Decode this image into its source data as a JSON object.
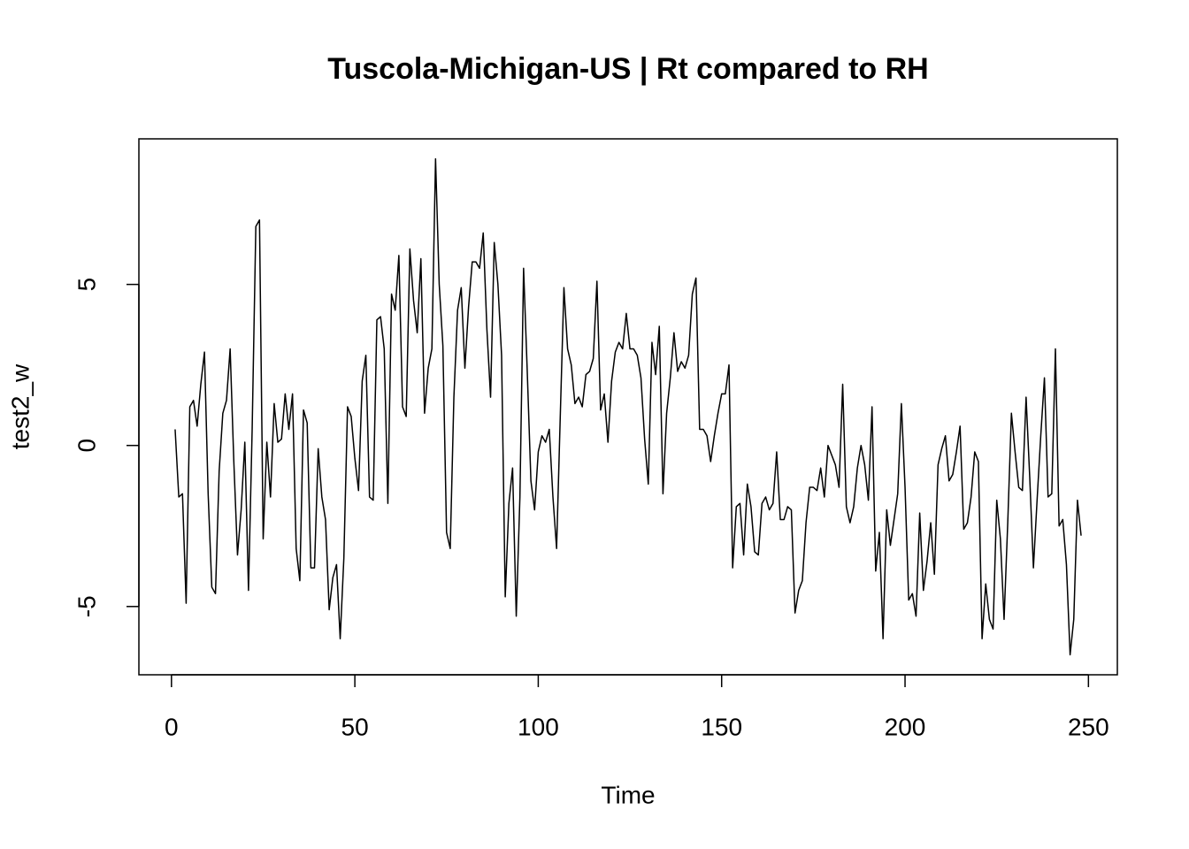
{
  "chart_data": {
    "type": "line",
    "title": "Tuscola-Michigan-US | Rt compared to RH",
    "xlabel": "Time",
    "ylabel": "test2_w",
    "color": "#000000",
    "x": [
      1,
      2,
      3,
      4,
      5,
      6,
      7,
      8,
      9,
      10,
      11,
      12,
      13,
      14,
      15,
      16,
      17,
      18,
      19,
      20,
      21,
      22,
      23,
      24,
      25,
      26,
      27,
      28,
      29,
      30,
      31,
      32,
      33,
      34,
      35,
      36,
      37,
      38,
      39,
      40,
      41,
      42,
      43,
      44,
      45,
      46,
      47,
      48,
      49,
      50,
      51,
      52,
      53,
      54,
      55,
      56,
      57,
      58,
      59,
      60,
      61,
      62,
      63,
      64,
      65,
      66,
      67,
      68,
      69,
      70,
      71,
      72,
      73,
      74,
      75,
      76,
      77,
      78,
      79,
      80,
      81,
      82,
      83,
      84,
      85,
      86,
      87,
      88,
      89,
      90,
      91,
      92,
      93,
      94,
      95,
      96,
      97,
      98,
      99,
      100,
      101,
      102,
      103,
      104,
      105,
      106,
      107,
      108,
      109,
      110,
      111,
      112,
      113,
      114,
      115,
      116,
      117,
      118,
      119,
      120,
      121,
      122,
      123,
      124,
      125,
      126,
      127,
      128,
      129,
      130,
      131,
      132,
      133,
      134,
      135,
      136,
      137,
      138,
      139,
      140,
      141,
      142,
      143,
      144,
      145,
      146,
      147,
      148,
      149,
      150,
      151,
      152,
      153,
      154,
      155,
      156,
      157,
      158,
      159,
      160,
      161,
      162,
      163,
      164,
      165,
      166,
      167,
      168,
      169,
      170,
      171,
      172,
      173,
      174,
      175,
      176,
      177,
      178,
      179,
      180,
      181,
      182,
      183,
      184,
      185,
      186,
      187,
      188,
      189,
      190,
      191,
      192,
      193,
      194,
      195,
      196,
      197,
      198,
      199,
      200,
      201,
      202,
      203,
      204,
      205,
      206,
      207,
      208,
      209,
      210,
      211,
      212,
      213,
      214,
      215,
      216,
      217,
      218,
      219,
      220,
      221,
      222,
      223,
      224,
      225,
      226,
      227,
      228,
      229,
      230,
      231,
      232,
      233,
      234,
      235,
      236,
      237,
      238,
      239,
      240,
      241,
      242,
      243,
      244,
      245,
      246,
      247,
      248
    ],
    "values": [
      0.5,
      -1.6,
      -1.5,
      -4.9,
      1.2,
      1.4,
      0.6,
      1.9,
      2.9,
      -1.5,
      -4.4,
      -4.6,
      -0.8,
      1.0,
      1.4,
      3.0,
      -0.5,
      -3.4,
      -2.0,
      0.1,
      -4.5,
      0.5,
      6.8,
      7.0,
      -2.9,
      0.1,
      -1.6,
      1.3,
      0.1,
      0.2,
      1.6,
      0.5,
      1.6,
      -3.2,
      -4.2,
      1.1,
      0.7,
      -3.8,
      -3.8,
      -0.1,
      -1.6,
      -2.3,
      -5.1,
      -4.1,
      -3.7,
      -6.0,
      -3.5,
      1.2,
      0.9,
      -0.4,
      -1.4,
      2.0,
      2.8,
      -1.6,
      -1.7,
      3.9,
      4.0,
      3.0,
      -1.8,
      4.7,
      4.2,
      5.9,
      1.2,
      0.9,
      6.1,
      4.5,
      3.5,
      5.8,
      1.0,
      2.4,
      3.0,
      8.9,
      5.0,
      3.1,
      -2.7,
      -3.2,
      1.5,
      4.2,
      4.9,
      2.4,
      4.3,
      5.7,
      5.7,
      5.5,
      6.6,
      3.6,
      1.5,
      6.3,
      5.0,
      2.8,
      -4.7,
      -1.8,
      -0.7,
      -5.3,
      -1.6,
      5.5,
      2.3,
      -1.1,
      -2.0,
      -0.2,
      0.3,
      0.1,
      0.5,
      -1.6,
      -3.2,
      0.9,
      4.9,
      3.0,
      2.5,
      1.3,
      1.5,
      1.2,
      2.2,
      2.3,
      2.7,
      5.1,
      1.1,
      1.6,
      0.1,
      2.0,
      2.9,
      3.2,
      3.0,
      4.1,
      3.0,
      3.0,
      2.8,
      2.1,
      0.2,
      -1.2,
      3.2,
      2.2,
      3.7,
      -1.5,
      1.0,
      2.1,
      3.5,
      2.3,
      2.6,
      2.4,
      2.8,
      4.7,
      5.2,
      0.5,
      0.5,
      0.3,
      -0.5,
      0.3,
      1.0,
      1.6,
      1.6,
      2.5,
      -3.8,
      -1.9,
      -1.8,
      -3.4,
      -1.2,
      -1.9,
      -3.3,
      -3.4,
      -1.8,
      -1.6,
      -2.0,
      -1.8,
      -0.2,
      -2.3,
      -2.3,
      -1.9,
      -2.0,
      -5.2,
      -4.5,
      -4.2,
      -2.4,
      -1.3,
      -1.3,
      -1.4,
      -0.7,
      -1.6,
      0.0,
      -0.3,
      -0.6,
      -1.3,
      1.9,
      -1.9,
      -2.4,
      -1.9,
      -0.7,
      0.0,
      -0.6,
      -1.7,
      1.2,
      -3.9,
      -2.7,
      -6.0,
      -2.0,
      -3.1,
      -2.3,
      -1.5,
      1.3,
      -1.3,
      -4.8,
      -4.6,
      -5.3,
      -2.1,
      -4.5,
      -3.6,
      -2.4,
      -4.0,
      -0.6,
      -0.1,
      0.3,
      -1.1,
      -0.9,
      -0.2,
      0.6,
      -2.6,
      -2.4,
      -1.6,
      -0.2,
      -0.5,
      -6.0,
      -4.3,
      -5.4,
      -5.7,
      -1.7,
      -2.9,
      -5.4,
      -2.4,
      1.0,
      -0.2,
      -1.3,
      -1.4,
      1.5,
      -1.0,
      -3.8,
      -1.7,
      0.3,
      2.1,
      -1.6,
      -1.5,
      3.0,
      -2.5,
      -2.3,
      -3.7,
      -6.5,
      -5.4,
      -1.7,
      -2.8
    ],
    "xlim": [
      -8.88,
      257.88
    ],
    "ylim": [
      -7.12,
      9.52
    ],
    "xticks": [
      0,
      50,
      100,
      150,
      200,
      250
    ],
    "yticks": [
      -5,
      0,
      5
    ]
  }
}
